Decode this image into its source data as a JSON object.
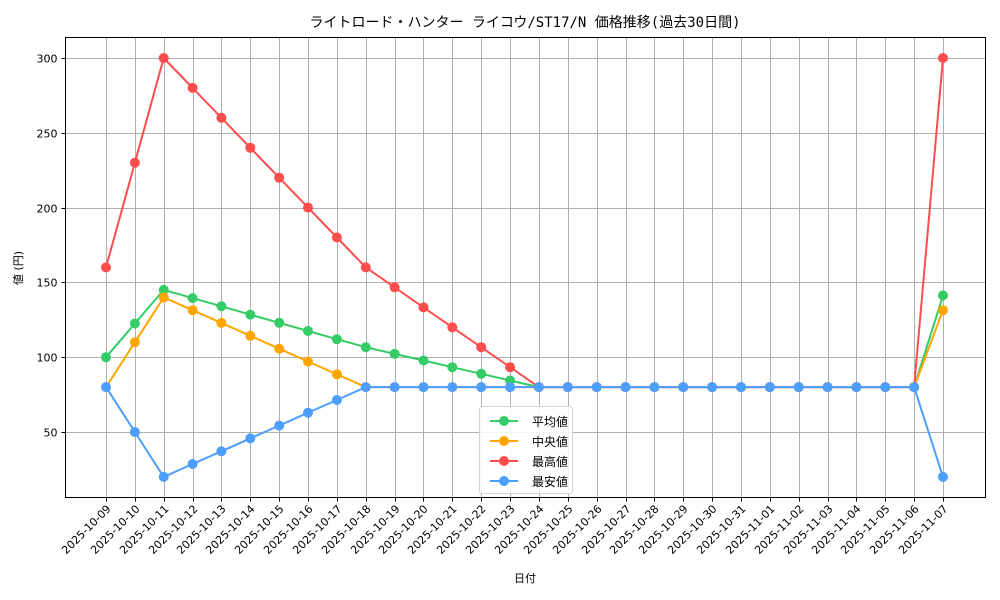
{
  "chart_data": {
    "type": "line",
    "title": "ライトロード・ハンター ライコウ/ST17/N 価格推移(過去30日間)",
    "xlabel": "日付",
    "ylabel": "値 (円)",
    "ylim": [
      10,
      315
    ],
    "yticks": [
      50,
      100,
      150,
      200,
      250,
      300
    ],
    "grid": true,
    "legend_position": "lower center",
    "x": [
      "2025-10-09",
      "2025-10-10",
      "2025-10-11",
      "2025-10-12",
      "2025-10-13",
      "2025-10-14",
      "2025-10-15",
      "2025-10-16",
      "2025-10-17",
      "2025-10-18",
      "2025-10-19",
      "2025-10-20",
      "2025-10-21",
      "2025-10-22",
      "2025-10-23",
      "2025-10-24",
      "2025-10-25",
      "2025-10-26",
      "2025-10-27",
      "2025-10-28",
      "2025-10-29",
      "2025-10-30",
      "2025-10-31",
      "2025-11-01",
      "2025-11-02",
      "2025-11-03",
      "2025-11-04",
      "2025-11-05",
      "2025-11-06",
      "2025-11-07"
    ],
    "series": [
      {
        "name": "平均値",
        "color": "#33cc66",
        "values": [
          100,
          122.5,
          145,
          139.5,
          134,
          128.5,
          123,
          117.5,
          112,
          106.7,
          102.2,
          97.8,
          93.3,
          88.9,
          84.4,
          80,
          80,
          80,
          80,
          80,
          80,
          80,
          80,
          80,
          80,
          80,
          80,
          80,
          80,
          141.3
        ]
      },
      {
        "name": "中央値",
        "color": "#ffa500",
        "values": [
          80,
          110,
          140,
          131.4,
          122.9,
          114.3,
          105.7,
          97.1,
          88.6,
          80,
          80,
          80,
          80,
          80,
          80,
          80,
          80,
          80,
          80,
          80,
          80,
          80,
          80,
          80,
          80,
          80,
          80,
          80,
          80,
          131.4
        ]
      },
      {
        "name": "最高値",
        "color": "#ff4d4d",
        "values": [
          160,
          230,
          300,
          280,
          260,
          240,
          220,
          200,
          180,
          160,
          146.7,
          133.3,
          120,
          106.7,
          93.3,
          80,
          80,
          80,
          80,
          80,
          80,
          80,
          80,
          80,
          80,
          80,
          80,
          80,
          80,
          300
        ]
      },
      {
        "name": "最安値",
        "color": "#4d9fff",
        "values": [
          80,
          50,
          20,
          28.6,
          37.1,
          45.7,
          54.3,
          62.9,
          71.4,
          80,
          80,
          80,
          80,
          80,
          80,
          80,
          80,
          80,
          80,
          80,
          80,
          80,
          80,
          80,
          80,
          80,
          80,
          80,
          80,
          20
        ]
      }
    ]
  },
  "legend": {
    "items": [
      {
        "label": "平均値",
        "color": "#33cc66"
      },
      {
        "label": "中央値",
        "color": "#ffa500"
      },
      {
        "label": "最高値",
        "color": "#ff4d4d"
      },
      {
        "label": "最安値",
        "color": "#4d9fff"
      }
    ]
  }
}
